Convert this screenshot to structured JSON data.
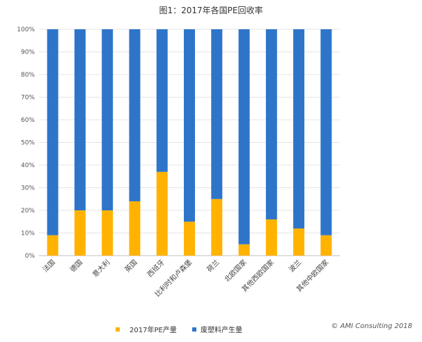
{
  "chart_data": {
    "type": "bar",
    "stacked": true,
    "percent": true,
    "title": "图1：2017年各国PE回收率",
    "categories": [
      "法国",
      "德国",
      "意大利",
      "英国",
      "西班牙",
      "比利时和卢森堡",
      "荷兰",
      "北欧国家",
      "其他西欧国家",
      "波兰",
      "其他中欧国家"
    ],
    "series": [
      {
        "name": "2017年PE产量",
        "color": "#FFB300",
        "values": [
          9,
          20,
          20,
          24,
          37,
          15,
          25,
          5,
          16,
          12,
          9
        ]
      },
      {
        "name": "废塑料产生量",
        "color": "#2E75C9",
        "values": [
          91,
          80,
          80,
          76,
          63,
          85,
          75,
          95,
          84,
          88,
          91
        ]
      }
    ],
    "ylim": [
      0,
      100
    ],
    "yticks": [
      "0%",
      "10%",
      "20%",
      "30%",
      "40%",
      "50%",
      "60%",
      "70%",
      "80%",
      "90%",
      "100%"
    ],
    "grid": true,
    "legend": "bottom"
  },
  "footer": {
    "copyright": "© AMI Consulting 2018"
  }
}
